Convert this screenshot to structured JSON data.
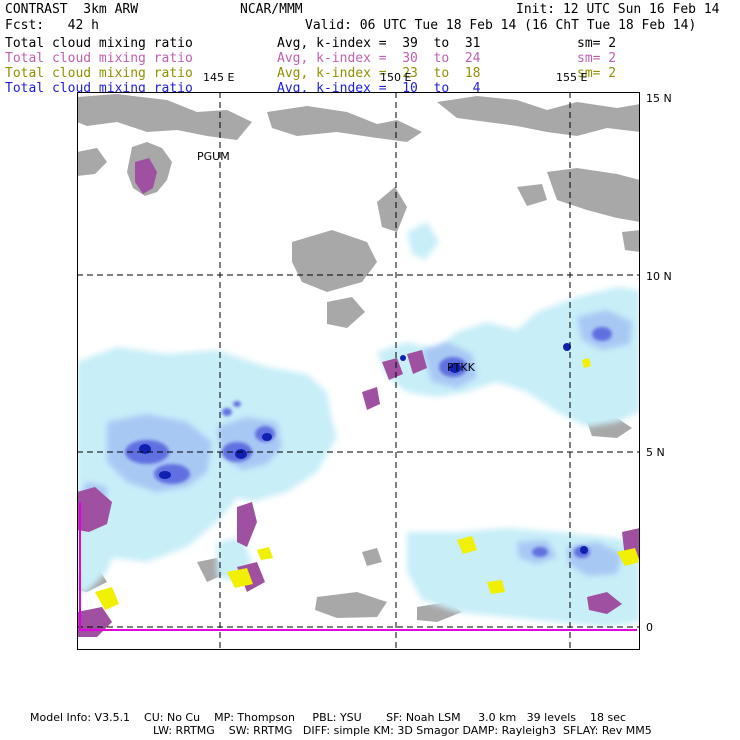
{
  "header": {
    "left1": "CONTRAST  3km ARW",
    "center1": "NCAR/MMM",
    "right1": "Init: 12 UTC Sun 16 Feb 14",
    "left2": "Fcst:   42 h",
    "valid": "Valid: 06 UTC Tue 18 Feb 14 (16 ChT Tue 18 Feb 14)",
    "rows": [
      {
        "field": "Total cloud mixing ratio",
        "avg": "Avg, k-index =  39  to  31",
        "sm": "sm= 2",
        "color": "#000000"
      },
      {
        "field": "Total cloud mixing ratio",
        "avg": "Avg, k-index =  30  to  24",
        "sm": "sm= 2",
        "color": "#c060b0"
      },
      {
        "field": "Total cloud mixing ratio",
        "avg": "Avg, k-index =  23  to  18",
        "sm": "sm= 2",
        "color": "#909000"
      },
      {
        "field": "Total cloud mixing ratio",
        "avg": "Avg, k-index =  10  to   4",
        "sm": "",
        "color": "#2020e0"
      }
    ]
  },
  "map": {
    "lon_labels": [
      "145 E",
      "150 E",
      "155 E"
    ],
    "lat_labels": [
      "15 N",
      "10 N",
      "5 N",
      "0"
    ],
    "stations": [
      "PGUM",
      "PTKK"
    ],
    "colors": {
      "land": "#a8a8a8",
      "cloud_light": "#c8eef8",
      "cloud_mid": "#a8c8f4",
      "cloud_dark": "#6070e0",
      "cloud_core": "#1020b0",
      "purple": "#a050a0",
      "yellow": "#f0f000",
      "magenta_line": "#e000e0"
    }
  },
  "footer": {
    "line1": "Model Info: V3.5.1    CU: No Cu    MP: Thompson     PBL: YSU       SF: Noah LSM     3.0 km   39 levels    18 sec",
    "line2": "LW: RRTMG    SW: RRTMG   DIFF: simple KM: 3D Smagor DAMP: Rayleigh3  SFLAY: Rev MM5"
  }
}
